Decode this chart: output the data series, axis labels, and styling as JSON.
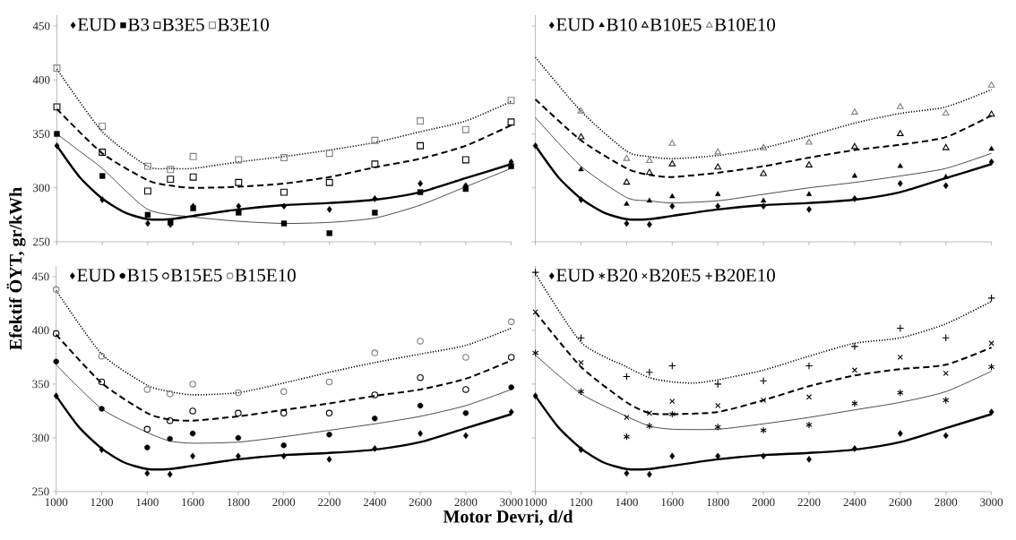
{
  "chart_data": [
    {
      "type": "scatter",
      "ylabel": "Efektif ÖYT, gr/kWh",
      "x": [
        1000,
        1200,
        1400,
        1500,
        1600,
        1800,
        2000,
        2200,
        2400,
        2600,
        2800,
        3000
      ],
      "xlim": [
        1000,
        3000
      ],
      "xticks": [
        1000,
        1200,
        1400,
        1600,
        1800,
        2000,
        2200,
        2400,
        2600,
        2800,
        3000
      ],
      "ylim": [
        250,
        460
      ],
      "yticks": [
        250,
        300,
        350,
        400,
        450
      ],
      "tick_labels": "y",
      "legend": "top left",
      "series": [
        {
          "name": "EUD",
          "marker": "diamond",
          "color": "#000000",
          "values": [
            339,
            289,
            267,
            266,
            283,
            283,
            283,
            280,
            290,
            304,
            302,
            324
          ]
        },
        {
          "type": "line",
          "line_style": "solid",
          "color": "#000000",
          "x": [
            1000,
            1100,
            1200,
            1300,
            1400,
            1500,
            1600,
            1800,
            2000,
            2200,
            2400,
            2600,
            2800,
            3000
          ],
          "values": [
            339,
            310,
            290,
            277,
            271,
            271,
            274,
            280,
            284,
            286,
            289,
            296,
            309,
            322
          ]
        },
        {
          "name": "B3",
          "marker": "square",
          "color": "#000000",
          "values": [
            350,
            311,
            275,
            268,
            281,
            277,
            267,
            258,
            277,
            296,
            299,
            320
          ]
        },
        {
          "type": "line",
          "line_style": "solid",
          "color": "#000000",
          "x": [
            1000,
            1100,
            1200,
            1400,
            1600,
            1800,
            2000,
            2200,
            2400,
            2600,
            2800,
            3000
          ],
          "values": [
            350,
            334,
            318,
            280,
            273,
            269,
            267,
            268,
            272,
            284,
            301,
            318
          ]
        },
        {
          "name": "B3E5",
          "marker": "square-open",
          "color": "#000000",
          "values": [
            375,
            333,
            297,
            308,
            310,
            305,
            296,
            305,
            322,
            339,
            326,
            361
          ]
        },
        {
          "type": "line",
          "line_style": "dashed",
          "color": "#000000",
          "x": [
            1000,
            1200,
            1400,
            1500,
            1600,
            1800,
            2000,
            2200,
            2400,
            2600,
            2800,
            3000
          ],
          "values": [
            373,
            332,
            307,
            302,
            300,
            301,
            304,
            310,
            319,
            327,
            339,
            358
          ]
        },
        {
          "name": "B3E10",
          "marker": "square-open",
          "color": "#808080",
          "values": [
            411,
            357,
            320,
            317,
            329,
            326,
            328,
            332,
            344,
            362,
            354,
            381
          ]
        },
        {
          "type": "line",
          "line_style": "dotted",
          "color": "#000000",
          "x": [
            1000,
            1200,
            1400,
            1500,
            1600,
            1800,
            2000,
            2200,
            2400,
            2600,
            2800,
            3000
          ],
          "values": [
            410,
            352,
            320,
            318,
            318,
            324,
            329,
            335,
            342,
            352,
            362,
            380
          ]
        }
      ]
    },
    {
      "type": "scatter",
      "x": [
        1000,
        1200,
        1400,
        1500,
        1600,
        1800,
        2000,
        2200,
        2400,
        2600,
        2800,
        3000
      ],
      "xlim": [
        1000,
        3000
      ],
      "xticks": [
        1000,
        1200,
        1400,
        1600,
        1800,
        2000,
        2200,
        2400,
        2600,
        2800,
        3000
      ],
      "ylim": [
        250,
        460
      ],
      "yticks": [
        250,
        300,
        350,
        400,
        450
      ],
      "tick_labels": false,
      "legend": "top left",
      "series": [
        {
          "name": "EUD",
          "marker": "diamond",
          "color": "#000000",
          "values": [
            339,
            289,
            267,
            266,
            283,
            283,
            283,
            280,
            290,
            304,
            302,
            324
          ]
        },
        {
          "type": "line",
          "line_style": "solid",
          "color": "#000000",
          "x": [
            1000,
            1100,
            1200,
            1300,
            1400,
            1500,
            1600,
            1800,
            2000,
            2200,
            2400,
            2600,
            2800,
            3000
          ],
          "values": [
            339,
            310,
            290,
            277,
            271,
            271,
            274,
            280,
            284,
            286,
            289,
            296,
            309,
            322
          ]
        },
        {
          "name": "B10",
          "marker": "triangle",
          "color": "#000000",
          "values": [
            null,
            317,
            285,
            288,
            292,
            294,
            288,
            294,
            311,
            320,
            310,
            336
          ]
        },
        {
          "type": "line",
          "line_style": "solid",
          "color": "#000000",
          "x": [
            1000,
            1200,
            1400,
            1500,
            1600,
            1800,
            2000,
            2200,
            2400,
            2600,
            2800,
            3000
          ],
          "values": [
            365,
            320,
            291,
            288,
            286,
            288,
            294,
            300,
            305,
            311,
            318,
            332
          ]
        },
        {
          "name": "B10E5",
          "marker": "triangle-open",
          "color": "#000000",
          "values": [
            null,
            347,
            305,
            314,
            322,
            319,
            313,
            321,
            338,
            350,
            337,
            368
          ]
        },
        {
          "type": "line",
          "line_style": "dashed",
          "color": "#000000",
          "x": [
            1000,
            1200,
            1400,
            1500,
            1600,
            1800,
            2000,
            2200,
            2400,
            2600,
            2800,
            3000
          ],
          "values": [
            382,
            344,
            318,
            312,
            310,
            314,
            320,
            328,
            335,
            340,
            347,
            367
          ]
        },
        {
          "name": "B10E10",
          "marker": "triangle-open",
          "color": "#808080",
          "values": [
            null,
            371,
            327,
            325,
            341,
            333,
            337,
            342,
            370,
            375,
            369,
            395
          ]
        },
        {
          "type": "line",
          "line_style": "dotted",
          "color": "#000000",
          "x": [
            1000,
            1200,
            1400,
            1500,
            1600,
            1800,
            2000,
            2200,
            2400,
            2600,
            2800,
            3000
          ],
          "values": [
            421,
            371,
            334,
            329,
            327,
            330,
            337,
            348,
            360,
            369,
            375,
            391
          ]
        }
      ]
    },
    {
      "type": "scatter",
      "xlabel": "Motor Devri, d/d",
      "x": [
        1000,
        1200,
        1400,
        1500,
        1600,
        1800,
        2000,
        2200,
        2400,
        2600,
        2800,
        3000
      ],
      "xlim": [
        1000,
        3000
      ],
      "xticks": [
        1000,
        1200,
        1400,
        1600,
        1800,
        2000,
        2200,
        2400,
        2600,
        2800,
        3000
      ],
      "ylim": [
        250,
        460
      ],
      "yticks": [
        250,
        300,
        350,
        400,
        450
      ],
      "legend": "top left",
      "series": [
        {
          "name": "EUD",
          "marker": "diamond",
          "color": "#000000",
          "values": [
            339,
            289,
            267,
            266,
            283,
            283,
            283,
            280,
            290,
            304,
            302,
            324
          ]
        },
        {
          "type": "line",
          "line_style": "solid",
          "color": "#000000",
          "x": [
            1000,
            1100,
            1200,
            1300,
            1400,
            1500,
            1600,
            1800,
            2000,
            2200,
            2400,
            2600,
            2800,
            3000
          ],
          "values": [
            339,
            310,
            290,
            277,
            271,
            271,
            274,
            280,
            284,
            286,
            289,
            296,
            309,
            322
          ]
        },
        {
          "name": "B15",
          "marker": "circle",
          "color": "#000000",
          "values": [
            371,
            327,
            291,
            299,
            304,
            300,
            293,
            303,
            318,
            330,
            323,
            347
          ]
        },
        {
          "type": "line",
          "line_style": "solid",
          "color": "#000000",
          "x": [
            1000,
            1200,
            1400,
            1500,
            1600,
            1800,
            2000,
            2200,
            2400,
            2600,
            2800,
            3000
          ],
          "values": [
            368,
            327,
            305,
            297,
            295,
            296,
            301,
            307,
            313,
            320,
            330,
            345
          ]
        },
        {
          "name": "B15E5",
          "marker": "circle-open",
          "color": "#000000",
          "values": [
            397,
            352,
            308,
            316,
            325,
            323,
            323,
            323,
            340,
            356,
            345,
            375
          ]
        },
        {
          "type": "line",
          "line_style": "dashed",
          "color": "#000000",
          "x": [
            1000,
            1200,
            1400,
            1500,
            1600,
            1800,
            2000,
            2200,
            2400,
            2600,
            2800,
            3000
          ],
          "values": [
            396,
            351,
            323,
            317,
            316,
            320,
            326,
            332,
            339,
            345,
            355,
            372
          ]
        },
        {
          "name": "B15E10",
          "marker": "circle-open",
          "color": "#808080",
          "values": [
            438,
            376,
            345,
            341,
            350,
            342,
            343,
            352,
            379,
            390,
            375,
            408
          ]
        },
        {
          "type": "line",
          "line_style": "dotted",
          "color": "#000000",
          "x": [
            1000,
            1200,
            1400,
            1500,
            1600,
            1800,
            2000,
            2200,
            2400,
            2600,
            2800,
            3000
          ],
          "values": [
            437,
            378,
            349,
            343,
            340,
            342,
            351,
            361,
            370,
            378,
            386,
            402
          ]
        }
      ]
    },
    {
      "type": "scatter",
      "x": [
        1000,
        1200,
        1400,
        1500,
        1600,
        1800,
        2000,
        2200,
        2400,
        2600,
        2800,
        3000
      ],
      "xlim": [
        1000,
        3000
      ],
      "xticks": [
        1000,
        1200,
        1400,
        1600,
        1800,
        2000,
        2200,
        2400,
        2600,
        2800,
        3000
      ],
      "ylim": [
        250,
        460
      ],
      "yticks": [
        250,
        300,
        350,
        400,
        450
      ],
      "tick_labels": "x",
      "legend": "top left",
      "series": [
        {
          "name": "EUD",
          "marker": "diamond",
          "color": "#000000",
          "values": [
            339,
            289,
            267,
            266,
            283,
            283,
            283,
            280,
            290,
            304,
            302,
            324
          ]
        },
        {
          "type": "line",
          "line_style": "solid",
          "color": "#000000",
          "x": [
            1000,
            1100,
            1200,
            1300,
            1400,
            1500,
            1600,
            1800,
            2000,
            2200,
            2400,
            2600,
            2800,
            3000
          ],
          "values": [
            339,
            310,
            290,
            277,
            271,
            271,
            274,
            280,
            284,
            286,
            289,
            296,
            309,
            322
          ]
        },
        {
          "name": "B20",
          "marker": "cross",
          "color": "#000000",
          "values": [
            379,
            343,
            301,
            311,
            322,
            310,
            307,
            312,
            332,
            342,
            335,
            366
          ]
        },
        {
          "type": "line",
          "line_style": "solid",
          "color": "#000000",
          "x": [
            1000,
            1200,
            1400,
            1500,
            1600,
            1800,
            2000,
            2200,
            2400,
            2600,
            2800,
            3000
          ],
          "values": [
            377,
            341,
            320,
            311,
            308,
            308,
            313,
            319,
            326,
            333,
            343,
            362
          ]
        },
        {
          "name": "B20E5",
          "marker": "x",
          "color": "#000000",
          "values": [
            417,
            370,
            319,
            323,
            334,
            330,
            335,
            338,
            363,
            375,
            360,
            388
          ]
        },
        {
          "type": "line",
          "line_style": "dashed",
          "color": "#000000",
          "x": [
            1000,
            1200,
            1400,
            1500,
            1600,
            1800,
            2000,
            2200,
            2400,
            2600,
            2800,
            3000
          ],
          "values": [
            417,
            366,
            333,
            323,
            322,
            324,
            335,
            348,
            358,
            364,
            368,
            384
          ]
        },
        {
          "name": "B20E10",
          "marker": "plus",
          "color": "#000000",
          "values": [
            454,
            393,
            357,
            361,
            367,
            350,
            353,
            367,
            385,
            402,
            393,
            430
          ]
        },
        {
          "type": "line",
          "line_style": "dotted",
          "color": "#000000",
          "x": [
            1000,
            1200,
            1400,
            1500,
            1600,
            1700,
            1800,
            2000,
            2200,
            2400,
            2600,
            2800,
            3000
          ],
          "values": [
            453,
            389,
            366,
            356,
            352,
            351,
            354,
            363,
            376,
            388,
            393,
            406,
            427
          ]
        }
      ]
    }
  ]
}
